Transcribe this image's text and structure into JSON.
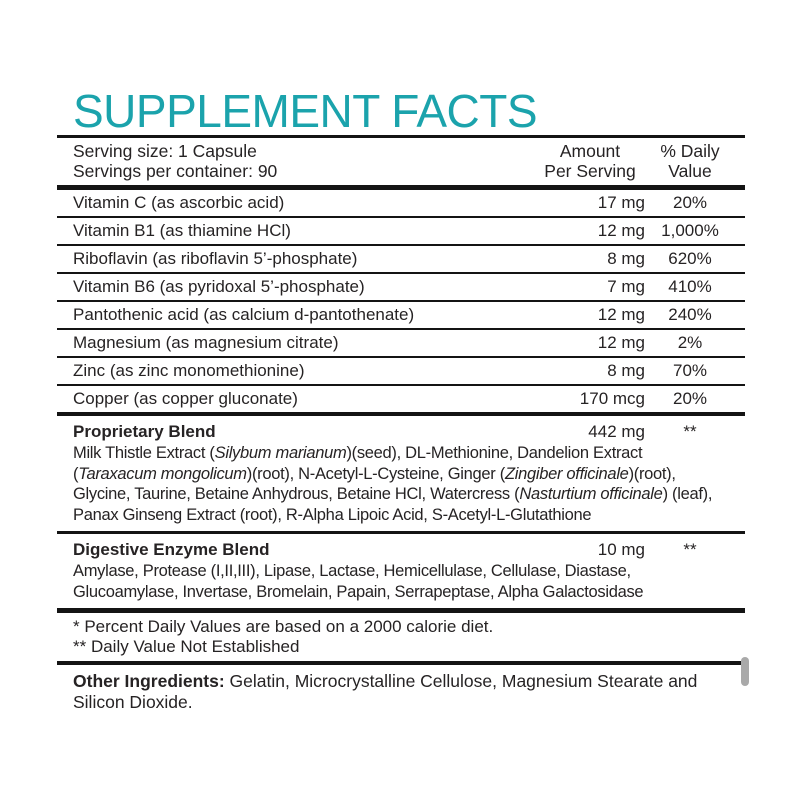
{
  "colors": {
    "accent": "#1BA3AC",
    "text": "#262324",
    "line": "#141414",
    "scrollbar": "#A9A9A9"
  },
  "title": "SUPPLEMENT FACTS",
  "serving": {
    "line1": "Serving size: 1 Capsule",
    "line2": "Servings per container: 90"
  },
  "columns": {
    "amount_line1": "Amount",
    "amount_line2": "Per Serving",
    "dv_line1": "% Daily",
    "dv_line2": "Value"
  },
  "nutrients": [
    {
      "name": "Vitamin C (as ascorbic acid)",
      "amount": "17 mg",
      "dv": "20%"
    },
    {
      "name": "Vitamin B1 (as thiamine HCl)",
      "amount": "12 mg",
      "dv": "1,000%"
    },
    {
      "name": "Riboflavin (as riboflavin 5’-phosphate)",
      "amount": "8 mg",
      "dv": "620%"
    },
    {
      "name": "Vitamin B6 (as pyridoxal 5’-phosphate)",
      "amount": "7 mg",
      "dv": "410%"
    },
    {
      "name": "Pantothenic acid (as calcium d-pantothenate)",
      "amount": "12 mg",
      "dv": "240%"
    },
    {
      "name": "Magnesium (as magnesium citrate)",
      "amount": "12 mg",
      "dv": "2%"
    },
    {
      "name": "Zinc (as zinc monomethionine)",
      "amount": "8 mg",
      "dv": "70%"
    },
    {
      "name": "Copper (as copper gluconate)",
      "amount": "170 mcg",
      "dv": "20%"
    }
  ],
  "blends": [
    {
      "name": "Proprietary Blend",
      "amount": "442 mg",
      "dv": "**",
      "description": [
        {
          "t": "Milk Thistle Extract ("
        },
        {
          "t": "Silybum marianum",
          "i": true
        },
        {
          "t": ")(seed), DL-Methionine, Dandelion Extract ("
        },
        {
          "t": "Taraxacum mongolicum",
          "i": true
        },
        {
          "t": ")(root), N-Acetyl-L-Cysteine, Ginger ("
        },
        {
          "t": "Zingiber officinale",
          "i": true
        },
        {
          "t": ")(root), Glycine, Taurine, Betaine Anhydrous, Betaine HCl, Watercress ("
        },
        {
          "t": "Nasturtium officinale",
          "i": true
        },
        {
          "t": ") (leaf), Panax Ginseng Extract (root), R-Alpha Lipoic Acid, S-Acetyl-L-Glutathione"
        }
      ]
    },
    {
      "name": "Digestive Enzyme Blend",
      "amount": "10 mg",
      "dv": "**",
      "description": [
        {
          "t": "Amylase, Protease (I,II,III), Lipase, Lactase, Hemicellulase, Cellulase, Diastase, Glucoamylase, Invertase, Bromelain, Papain, Serrapeptase, Alpha Galactosidase"
        }
      ]
    }
  ],
  "footnotes": [
    "* Percent Daily Values are based on a 2000 calorie diet.",
    "** Daily Value Not Established"
  ],
  "other": {
    "label": "Other Ingredients:",
    "text": " Gelatin, Microcrystalline Cellulose, Magnesium Stearate and Silicon Dioxide."
  }
}
